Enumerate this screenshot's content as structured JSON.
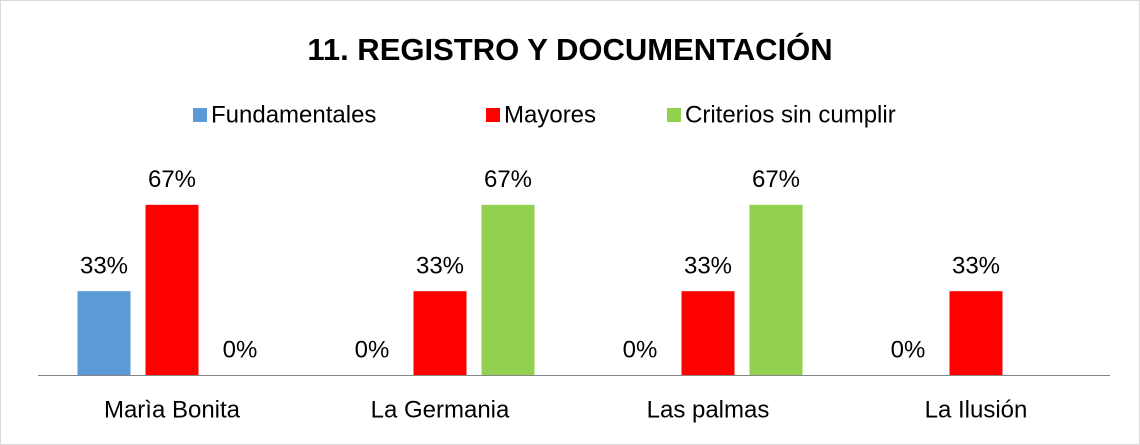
{
  "chart_data": {
    "type": "bar",
    "title": "11. REGISTRO Y DOCUMENTACIÓN",
    "categories": [
      "Marìa Bonita",
      "La Germania",
      "Las palmas",
      "La Ilusión"
    ],
    "series": [
      {
        "name": "Fundamentales",
        "color": "#5b9bd5",
        "values": [
          33,
          0,
          0,
          0
        ],
        "value_labels": [
          "33%",
          "0%",
          "0%",
          "0%"
        ]
      },
      {
        "name": "Mayores",
        "color": "#ff0000",
        "values": [
          67,
          33,
          33,
          33
        ],
        "value_labels": [
          "67%",
          "33%",
          "33%",
          "33%"
        ]
      },
      {
        "name": "Criterios sin cumplir",
        "color": "#92d050",
        "values": [
          0,
          67,
          67,
          null
        ],
        "value_labels": [
          "0%",
          "67%",
          "67%",
          null
        ]
      }
    ],
    "legend": "top"
  }
}
